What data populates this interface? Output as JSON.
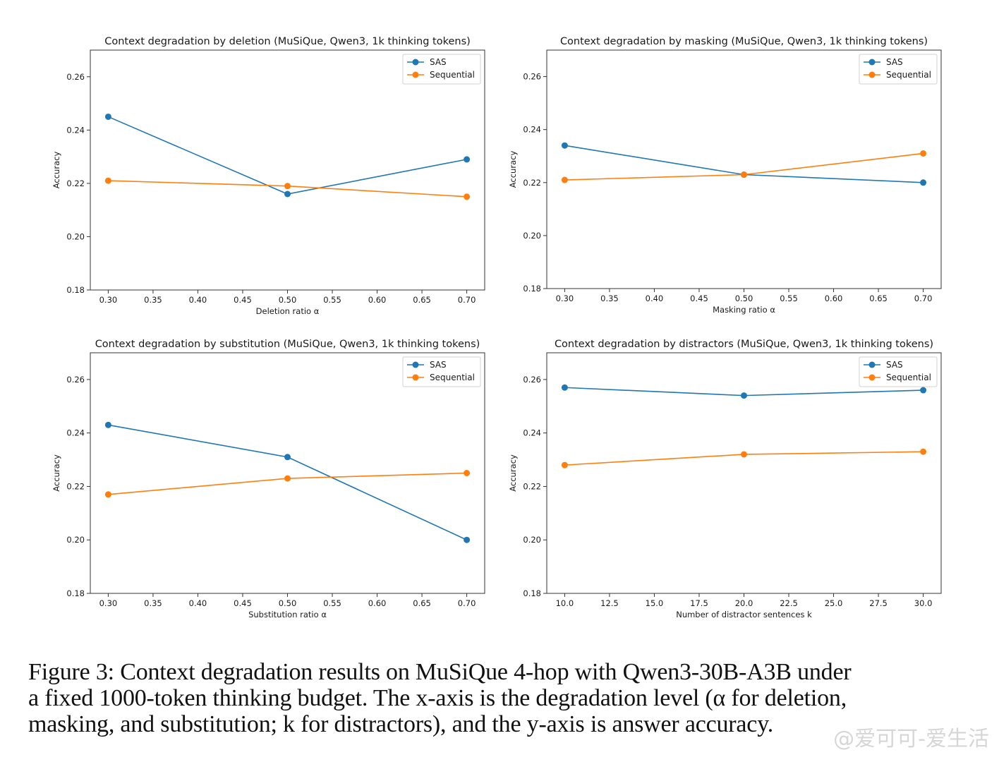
{
  "chart_data": [
    {
      "type": "line",
      "title": "Context degradation by deletion (MuSiQue, Qwen3, 1k thinking tokens)",
      "xlabel": "Deletion ratio α",
      "ylabel": "Accuracy",
      "x": [
        0.3,
        0.5,
        0.7
      ],
      "xlim": [
        0.28,
        0.72
      ],
      "ylim": [
        0.18,
        0.27
      ],
      "xticks": [
        "0.30",
        "0.35",
        "0.40",
        "0.45",
        "0.50",
        "0.55",
        "0.60",
        "0.65",
        "0.70"
      ],
      "xtick_values": [
        0.3,
        0.35,
        0.4,
        0.45,
        0.5,
        0.55,
        0.6,
        0.65,
        0.7
      ],
      "yticks": [
        "0.18",
        "0.20",
        "0.22",
        "0.24",
        "0.26"
      ],
      "ytick_values": [
        0.18,
        0.2,
        0.22,
        0.24,
        0.26
      ],
      "legend": "top-right",
      "grid": false,
      "series": [
        {
          "name": "SAS",
          "color": "#1f77b4",
          "values": [
            0.245,
            0.216,
            0.229
          ]
        },
        {
          "name": "Sequential",
          "color": "#ff7f0e",
          "values": [
            0.221,
            0.219,
            0.215
          ]
        }
      ]
    },
    {
      "type": "line",
      "title": "Context degradation by masking (MuSiQue, Qwen3, 1k thinking tokens)",
      "xlabel": "Masking ratio α",
      "ylabel": "Accuracy",
      "x": [
        0.3,
        0.5,
        0.7
      ],
      "xlim": [
        0.28,
        0.72
      ],
      "ylim": [
        0.18,
        0.27
      ],
      "xticks": [
        "0.30",
        "0.35",
        "0.40",
        "0.45",
        "0.50",
        "0.55",
        "0.60",
        "0.65",
        "0.70"
      ],
      "xtick_values": [
        0.3,
        0.35,
        0.4,
        0.45,
        0.5,
        0.55,
        0.6,
        0.65,
        0.7
      ],
      "yticks": [
        "0.18",
        "0.20",
        "0.22",
        "0.24",
        "0.26"
      ],
      "ytick_values": [
        0.18,
        0.2,
        0.22,
        0.24,
        0.26
      ],
      "legend": "top-right",
      "grid": false,
      "series": [
        {
          "name": "SAS",
          "color": "#1f77b4",
          "values": [
            0.234,
            0.223,
            0.22
          ]
        },
        {
          "name": "Sequential",
          "color": "#ff7f0e",
          "values": [
            0.221,
            0.223,
            0.231
          ]
        }
      ]
    },
    {
      "type": "line",
      "title": "Context degradation by substitution (MuSiQue, Qwen3, 1k thinking tokens)",
      "xlabel": "Substitution ratio α",
      "ylabel": "Accuracy",
      "x": [
        0.3,
        0.5,
        0.7
      ],
      "xlim": [
        0.28,
        0.72
      ],
      "ylim": [
        0.18,
        0.27
      ],
      "xticks": [
        "0.30",
        "0.35",
        "0.40",
        "0.45",
        "0.50",
        "0.55",
        "0.60",
        "0.65",
        "0.70"
      ],
      "xtick_values": [
        0.3,
        0.35,
        0.4,
        0.45,
        0.5,
        0.55,
        0.6,
        0.65,
        0.7
      ],
      "yticks": [
        "0.18",
        "0.20",
        "0.22",
        "0.24",
        "0.26"
      ],
      "ytick_values": [
        0.18,
        0.2,
        0.22,
        0.24,
        0.26
      ],
      "legend": "top-right",
      "grid": false,
      "series": [
        {
          "name": "SAS",
          "color": "#1f77b4",
          "values": [
            0.243,
            0.231,
            0.2
          ]
        },
        {
          "name": "Sequential",
          "color": "#ff7f0e",
          "values": [
            0.217,
            0.223,
            0.225
          ]
        }
      ]
    },
    {
      "type": "line",
      "title": "Context degradation by distractors (MuSiQue, Qwen3, 1k thinking tokens)",
      "xlabel": "Number of distractor sentences k",
      "ylabel": "Accuracy",
      "x": [
        10.0,
        20.0,
        30.0
      ],
      "xlim": [
        9.0,
        31.0
      ],
      "ylim": [
        0.18,
        0.27
      ],
      "xticks": [
        "10.0",
        "12.5",
        "15.0",
        "17.5",
        "20.0",
        "22.5",
        "25.0",
        "27.5",
        "30.0"
      ],
      "xtick_values": [
        10.0,
        12.5,
        15.0,
        17.5,
        20.0,
        22.5,
        25.0,
        27.5,
        30.0
      ],
      "yticks": [
        "0.18",
        "0.20",
        "0.22",
        "0.24",
        "0.26"
      ],
      "ytick_values": [
        0.18,
        0.2,
        0.22,
        0.24,
        0.26
      ],
      "legend": "top-right",
      "grid": false,
      "series": [
        {
          "name": "SAS",
          "color": "#1f77b4",
          "values": [
            0.257,
            0.254,
            0.256
          ]
        },
        {
          "name": "Sequential",
          "color": "#ff7f0e",
          "values": [
            0.228,
            0.232,
            0.233
          ]
        }
      ]
    }
  ],
  "caption": {
    "line1": "Figure 3:  Context degradation results on MuSiQue 4-hop with Qwen3-30B-A3B under",
    "line2": "a fixed 1000-token thinking budget.  The x-axis is the degradation level (α for deletion,",
    "line3": "masking, and substitution; k for distractors), and the y-axis is answer accuracy."
  },
  "watermark": "@爱可可-爱生活"
}
